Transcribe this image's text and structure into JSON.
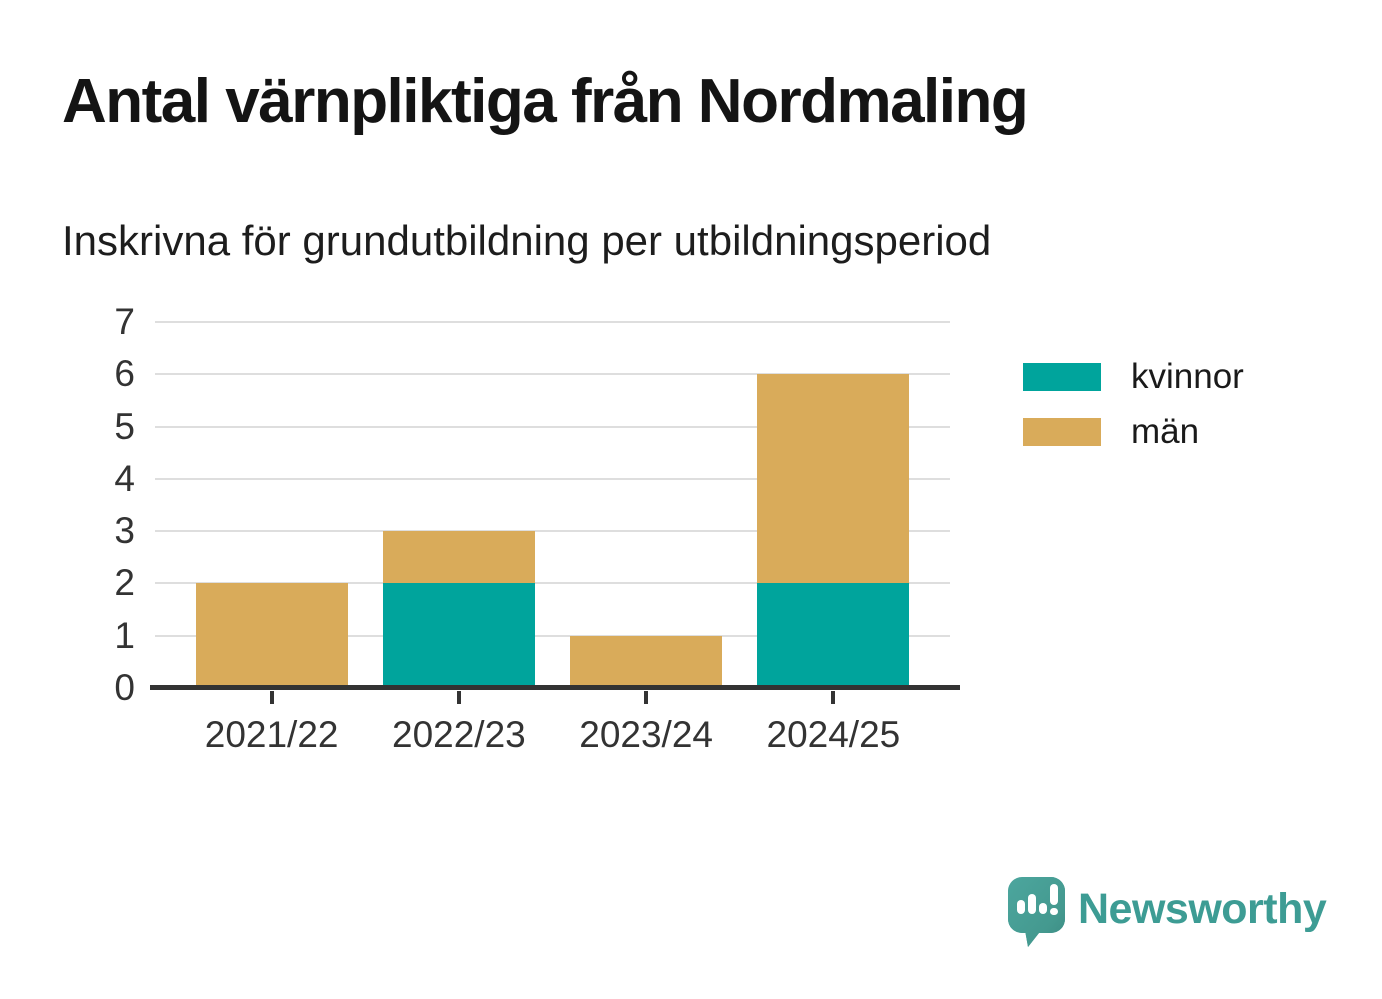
{
  "header": {
    "title": "Antal värnpliktiga från Nordmaling",
    "subtitle": "Inskrivna för grundutbildning per utbildningsperiod"
  },
  "chart_data": {
    "type": "bar",
    "stacked": true,
    "title": "Antal värnpliktiga från Nordmaling",
    "subtitle": "Inskrivna för grundutbildning per utbildningsperiod",
    "categories": [
      "2021/22",
      "2022/23",
      "2023/24",
      "2024/25"
    ],
    "series": [
      {
        "name": "kvinnor",
        "color": "#00a49c",
        "values": [
          0,
          2,
          0,
          2
        ]
      },
      {
        "name": "män",
        "color": "#d9ab5a",
        "values": [
          2,
          1,
          1,
          4
        ]
      }
    ],
    "stack_totals": [
      2,
      3,
      1,
      6
    ],
    "xlabel": "",
    "ylabel": "",
    "ylim": [
      0,
      7
    ],
    "yticks": [
      0,
      1,
      2,
      3,
      4,
      5,
      6,
      7
    ],
    "grid": true,
    "legend_position": "right",
    "colors": {
      "grid": "#dedede",
      "axis": "#333333",
      "tick_label": "#333333"
    }
  },
  "legend": {
    "items": [
      {
        "label": "kvinnor",
        "color": "#00a49c"
      },
      {
        "label": "män",
        "color": "#d9ab5a"
      }
    ]
  },
  "branding": {
    "name": "Newsworthy",
    "color": "#3d9c94",
    "icon": "newsworthy-speech-bubble-bar-chart-icon"
  }
}
